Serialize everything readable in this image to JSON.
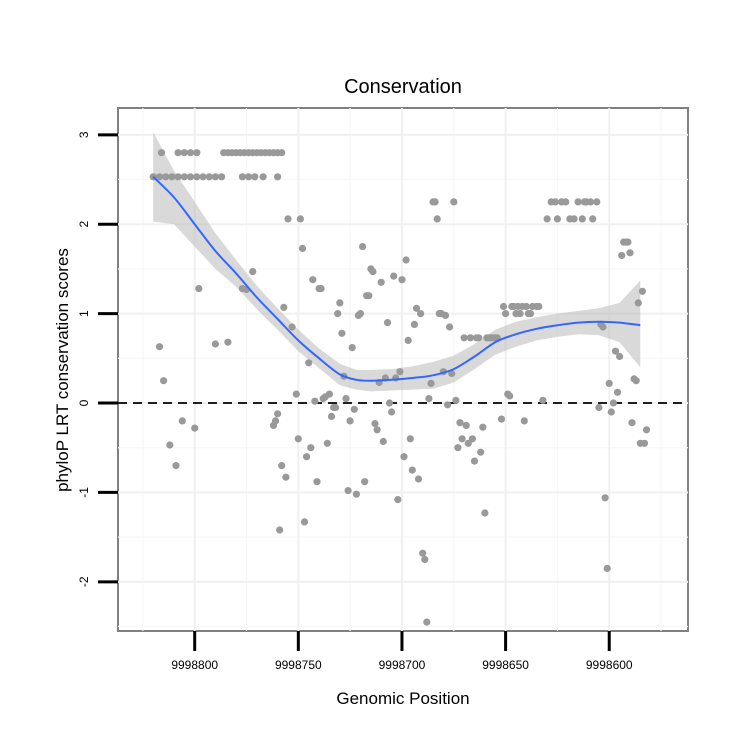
{
  "chart_data": {
    "type": "scatter",
    "title": "Conservation",
    "xlabel": "Genomic Position",
    "ylabel": "phyloP LRT conservation scores",
    "x_reversed": true,
    "xlim": [
      9998837,
      9998562
    ],
    "ylim": [
      -2.55,
      3.3
    ],
    "x_ticks": [
      9998800,
      9998750,
      9998700,
      9998650,
      9998600
    ],
    "x_tick_labels": [
      "9998800",
      "9998750",
      "9998700",
      "9998650",
      "9998600"
    ],
    "y_ticks": [
      -2,
      -1,
      0,
      1,
      2,
      3
    ],
    "y_tick_labels": [
      "-2",
      "-1",
      "0",
      "1",
      "2",
      "3"
    ],
    "grid": true,
    "hline": {
      "y": 0,
      "style": "dashed",
      "color": "#000000"
    },
    "point_color": "#999999",
    "smooth_color": "#3366ff",
    "band_color": "#b3b3b3",
    "points": [
      [
        9998820,
        2.53
      ],
      [
        9998817,
        2.53
      ],
      [
        9998814,
        2.53
      ],
      [
        9998811,
        2.53
      ],
      [
        9998808,
        2.53
      ],
      [
        9998805,
        2.53
      ],
      [
        9998802,
        2.53
      ],
      [
        9998799,
        2.53
      ],
      [
        9998796,
        2.53
      ],
      [
        9998793,
        2.53
      ],
      [
        9998790,
        2.53
      ],
      [
        9998787,
        2.53
      ],
      [
        9998777,
        2.53
      ],
      [
        9998774,
        2.53
      ],
      [
        9998771,
        2.53
      ],
      [
        9998767,
        2.53
      ],
      [
        9998760,
        2.53
      ],
      [
        9998816,
        2.8
      ],
      [
        9998808,
        2.8
      ],
      [
        9998805,
        2.8
      ],
      [
        9998802,
        2.8
      ],
      [
        9998799,
        2.8
      ],
      [
        9998786,
        2.8
      ],
      [
        9998784,
        2.8
      ],
      [
        9998782,
        2.8
      ],
      [
        9998780,
        2.8
      ],
      [
        9998778,
        2.8
      ],
      [
        9998776,
        2.8
      ],
      [
        9998774,
        2.8
      ],
      [
        9998772,
        2.8
      ],
      [
        9998770,
        2.8
      ],
      [
        9998768,
        2.8
      ],
      [
        9998766,
        2.8
      ],
      [
        9998764,
        2.8
      ],
      [
        9998762,
        2.8
      ],
      [
        9998760,
        2.8
      ],
      [
        9998758,
        2.8
      ],
      [
        9998817,
        0.63
      ],
      [
        9998815,
        0.25
      ],
      [
        9998812,
        -0.47
      ],
      [
        9998809,
        -0.7
      ],
      [
        9998806,
        -0.2
      ],
      [
        9998800,
        -0.28
      ],
      [
        9998798,
        1.28
      ],
      [
        9998790,
        0.66
      ],
      [
        9998784,
        0.68
      ],
      [
        9998777,
        1.28
      ],
      [
        9998775,
        1.27
      ],
      [
        9998772,
        1.47
      ],
      [
        9998762,
        -0.25
      ],
      [
        9998761,
        -0.2
      ],
      [
        9998760,
        -0.12
      ],
      [
        9998759,
        -1.42
      ],
      [
        9998758,
        -0.7
      ],
      [
        9998756,
        -0.83
      ],
      [
        9998757,
        1.07
      ],
      [
        9998755,
        2.06
      ],
      [
        9998753,
        0.85
      ],
      [
        9998751,
        0.1
      ],
      [
        9998750,
        -0.4
      ],
      [
        9998749,
        2.06
      ],
      [
        9998748,
        1.73
      ],
      [
        9998747,
        -1.33
      ],
      [
        9998746,
        -0.6
      ],
      [
        9998745,
        0.45
      ],
      [
        9998744,
        -0.5
      ],
      [
        9998743,
        1.38
      ],
      [
        9998742,
        0.02
      ],
      [
        9998741,
        -0.88
      ],
      [
        9998740,
        1.28
      ],
      [
        9998739,
        1.28
      ],
      [
        9998738,
        0.05
      ],
      [
        9998737,
        0.07
      ],
      [
        9998736,
        -0.45
      ],
      [
        9998735,
        0.1
      ],
      [
        9998734,
        -0.15
      ],
      [
        9998733,
        -0.05
      ],
      [
        9998732,
        -0.05
      ],
      [
        9998731,
        1.0
      ],
      [
        9998730,
        1.12
      ],
      [
        9998729,
        0.78
      ],
      [
        9998728,
        0.3
      ],
      [
        9998727,
        0.05
      ],
      [
        9998726,
        -0.98
      ],
      [
        9998725,
        -0.2
      ],
      [
        9998724,
        0.62
      ],
      [
        9998723,
        -0.07
      ],
      [
        9998722,
        -1.02
      ],
      [
        9998721,
        0.98
      ],
      [
        9998720,
        1.0
      ],
      [
        9998719,
        1.75
      ],
      [
        9998718,
        -0.88
      ],
      [
        9998717,
        1.2
      ],
      [
        9998716,
        1.2
      ],
      [
        9998715,
        1.5
      ],
      [
        9998714,
        1.47
      ],
      [
        9998713,
        -0.23
      ],
      [
        9998712,
        -0.3
      ],
      [
        9998711,
        0.23
      ],
      [
        9998710,
        1.35
      ],
      [
        9998709,
        -0.43
      ],
      [
        9998708,
        0.28
      ],
      [
        9998707,
        0.9
      ],
      [
        9998706,
        0.0
      ],
      [
        9998705,
        -0.1
      ],
      [
        9998704,
        1.42
      ],
      [
        9998703,
        0.28
      ],
      [
        9998702,
        -1.08
      ],
      [
        9998701,
        0.35
      ],
      [
        9998700,
        1.38
      ],
      [
        9998699,
        -0.6
      ],
      [
        9998698,
        1.6
      ],
      [
        9998697,
        0.7
      ],
      [
        9998696,
        -0.4
      ],
      [
        9998695,
        -0.75
      ],
      [
        9998694,
        0.88
      ],
      [
        9998693,
        1.06
      ],
      [
        9998692,
        -0.85
      ],
      [
        9998691,
        1.0
      ],
      [
        9998690,
        -1.68
      ],
      [
        9998689,
        -1.75
      ],
      [
        9998688,
        -2.45
      ],
      [
        9998687,
        0.05
      ],
      [
        9998686,
        0.22
      ],
      [
        9998685,
        2.25
      ],
      [
        9998684,
        2.25
      ],
      [
        9998683,
        2.06
      ],
      [
        9998682,
        1.0
      ],
      [
        9998681,
        1.0
      ],
      [
        9998680,
        0.35
      ],
      [
        9998679,
        0.98
      ],
      [
        9998678,
        -0.02
      ],
      [
        9998677,
        0.85
      ],
      [
        9998676,
        0.33
      ],
      [
        9998675,
        2.25
      ],
      [
        9998674,
        0.03
      ],
      [
        9998673,
        -0.5
      ],
      [
        9998672,
        -0.22
      ],
      [
        9998671,
        -0.4
      ],
      [
        9998670,
        0.73
      ],
      [
        9998669,
        -0.25
      ],
      [
        9998668,
        -0.45
      ],
      [
        9998667,
        0.73
      ],
      [
        9998666,
        -0.4
      ],
      [
        9998665,
        -0.65
      ],
      [
        9998664,
        0.73
      ],
      [
        9998663,
        0.73
      ],
      [
        9998662,
        -0.55
      ],
      [
        9998661,
        -0.27
      ],
      [
        9998660,
        -1.23
      ],
      [
        9998659,
        0.73
      ],
      [
        9998658,
        0.73
      ],
      [
        9998657,
        0.73
      ],
      [
        9998656,
        0.73
      ],
      [
        9998655,
        0.73
      ],
      [
        9998654,
        0.73
      ],
      [
        9998652,
        -0.18
      ],
      [
        9998651,
        1.08
      ],
      [
        9998650,
        1.0
      ],
      [
        9998649,
        0.1
      ],
      [
        9998648,
        0.08
      ],
      [
        9998647,
        1.08
      ],
      [
        9998646,
        1.08
      ],
      [
        9998645,
        1.0
      ],
      [
        9998644,
        1.08
      ],
      [
        9998643,
        1.0
      ],
      [
        9998642,
        1.08
      ],
      [
        9998641,
        -0.2
      ],
      [
        9998640,
        1.08
      ],
      [
        9998639,
        1.0
      ],
      [
        9998638,
        1.0
      ],
      [
        9998637,
        1.08
      ],
      [
        9998635,
        1.08
      ],
      [
        9998634,
        1.08
      ],
      [
        9998632,
        0.03
      ],
      [
        9998630,
        2.06
      ],
      [
        9998628,
        2.25
      ],
      [
        9998626,
        2.25
      ],
      [
        9998625,
        2.06
      ],
      [
        9998623,
        2.25
      ],
      [
        9998621,
        2.25
      ],
      [
        9998619,
        2.06
      ],
      [
        9998617,
        2.06
      ],
      [
        9998615,
        2.25
      ],
      [
        9998613,
        2.06
      ],
      [
        9998612,
        2.25
      ],
      [
        9998611,
        2.25
      ],
      [
        9998609,
        2.25
      ],
      [
        9998608,
        2.06
      ],
      [
        9998606,
        2.25
      ],
      [
        9998605,
        -0.05
      ],
      [
        9998604,
        0.88
      ],
      [
        9998603,
        0.85
      ],
      [
        9998602,
        -1.06
      ],
      [
        9998601,
        -1.85
      ],
      [
        9998600,
        0.22
      ],
      [
        9998599,
        -0.1
      ],
      [
        9998598,
        0.0
      ],
      [
        9998597,
        0.58
      ],
      [
        9998596,
        0.12
      ],
      [
        9998595,
        0.52
      ],
      [
        9998594,
        1.65
      ],
      [
        9998593,
        1.8
      ],
      [
        9998592,
        1.8
      ],
      [
        9998591,
        1.8
      ],
      [
        9998590,
        1.68
      ],
      [
        9998589,
        -0.22
      ],
      [
        9998588,
        0.27
      ],
      [
        9998587,
        0.25
      ],
      [
        9998586,
        1.12
      ],
      [
        9998585,
        -0.45
      ],
      [
        9998584,
        1.25
      ],
      [
        9998583,
        -0.45
      ],
      [
        9998582,
        -0.3
      ]
    ],
    "smooth": [
      [
        9998820,
        2.53
      ],
      [
        9998810,
        2.3
      ],
      [
        9998800,
        2.0
      ],
      [
        9998790,
        1.7
      ],
      [
        9998780,
        1.45
      ],
      [
        9998770,
        1.18
      ],
      [
        9998760,
        0.94
      ],
      [
        9998750,
        0.7
      ],
      [
        9998740,
        0.5
      ],
      [
        9998730,
        0.32
      ],
      [
        9998722,
        0.26
      ],
      [
        9998715,
        0.25
      ],
      [
        9998705,
        0.26
      ],
      [
        9998695,
        0.28
      ],
      [
        9998685,
        0.31
      ],
      [
        9998675,
        0.38
      ],
      [
        9998665,
        0.52
      ],
      [
        9998655,
        0.68
      ],
      [
        9998645,
        0.77
      ],
      [
        9998635,
        0.83
      ],
      [
        9998625,
        0.87
      ],
      [
        9998615,
        0.9
      ],
      [
        9998605,
        0.91
      ],
      [
        9998595,
        0.9
      ],
      [
        9998585,
        0.87
      ]
    ],
    "band_upper": [
      [
        9998820,
        3.03
      ],
      [
        9998810,
        2.6
      ],
      [
        9998800,
        2.25
      ],
      [
        9998790,
        1.9
      ],
      [
        9998780,
        1.6
      ],
      [
        9998770,
        1.31
      ],
      [
        9998760,
        1.06
      ],
      [
        9998750,
        0.82
      ],
      [
        9998740,
        0.61
      ],
      [
        9998730,
        0.44
      ],
      [
        9998722,
        0.37
      ],
      [
        9998715,
        0.37
      ],
      [
        9998705,
        0.38
      ],
      [
        9998695,
        0.41
      ],
      [
        9998685,
        0.46
      ],
      [
        9998675,
        0.53
      ],
      [
        9998665,
        0.66
      ],
      [
        9998655,
        0.82
      ],
      [
        9998645,
        0.91
      ],
      [
        9998635,
        0.96
      ],
      [
        9998625,
        1.0
      ],
      [
        9998615,
        1.03
      ],
      [
        9998605,
        1.06
      ],
      [
        9998595,
        1.12
      ],
      [
        9998585,
        1.37
      ]
    ],
    "band_lower": [
      [
        9998820,
        2.03
      ],
      [
        9998810,
        2.0
      ],
      [
        9998800,
        1.75
      ],
      [
        9998790,
        1.5
      ],
      [
        9998780,
        1.3
      ],
      [
        9998770,
        1.05
      ],
      [
        9998760,
        0.82
      ],
      [
        9998750,
        0.58
      ],
      [
        9998740,
        0.39
      ],
      [
        9998730,
        0.2
      ],
      [
        9998722,
        0.15
      ],
      [
        9998715,
        0.13
      ],
      [
        9998705,
        0.14
      ],
      [
        9998695,
        0.15
      ],
      [
        9998685,
        0.16
      ],
      [
        9998675,
        0.23
      ],
      [
        9998665,
        0.38
      ],
      [
        9998655,
        0.54
      ],
      [
        9998645,
        0.63
      ],
      [
        9998635,
        0.7
      ],
      [
        9998625,
        0.74
      ],
      [
        9998615,
        0.77
      ],
      [
        9998605,
        0.76
      ],
      [
        9998595,
        0.68
      ],
      [
        9998585,
        0.4
      ]
    ]
  }
}
